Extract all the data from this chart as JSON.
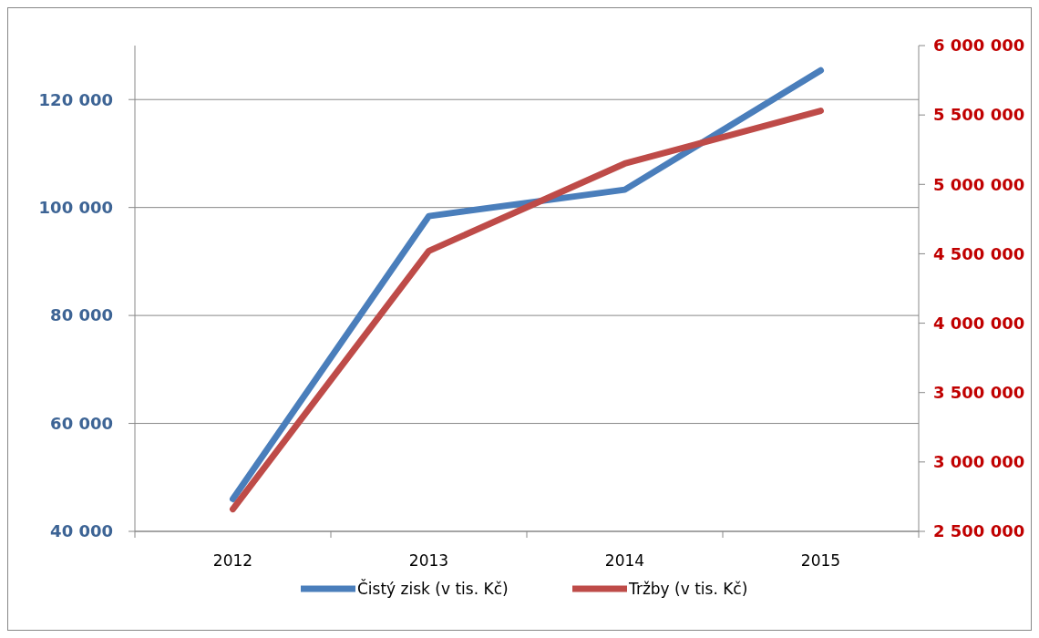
{
  "chart_data": {
    "type": "line",
    "categories": [
      "2012",
      "2013",
      "2014",
      "2015"
    ],
    "series": [
      {
        "name": "Čistý zisk (v tis. Kč)",
        "color": "#4a7ebb",
        "values": [
          46000,
          98400,
          103300,
          125400
        ]
      },
      {
        "name": "Tržby (v tis. Kč)",
        "color": "#be4b48",
        "values": [
          2660000,
          4520000,
          5150000,
          5530000
        ],
        "axis": "y2"
      }
    ],
    "ylim": [
      40000,
      130000
    ],
    "yticks": [
      {
        "value": 40000,
        "label": "40 000"
      },
      {
        "value": 60000,
        "label": "60 000"
      },
      {
        "value": 80000,
        "label": "80 000"
      },
      {
        "value": 100000,
        "label": "100 000"
      },
      {
        "value": 120000,
        "label": "120 000"
      }
    ],
    "y2lim": [
      2500000,
      6000000
    ],
    "y2ticks": [
      {
        "value": 2500000,
        "label": "2 500 000"
      },
      {
        "value": 3000000,
        "label": "3 000 000"
      },
      {
        "value": 3500000,
        "label": "3 500 000"
      },
      {
        "value": 4000000,
        "label": "4 000 000"
      },
      {
        "value": 4500000,
        "label": "4 500 000"
      },
      {
        "value": 5000000,
        "label": "5 000 000"
      },
      {
        "value": 5500000,
        "label": "5 500 000"
      },
      {
        "value": 6000000,
        "label": "6 000 000"
      }
    ],
    "grid": "y",
    "legend": "bottom",
    "marker": "none",
    "line_style": "solid"
  }
}
